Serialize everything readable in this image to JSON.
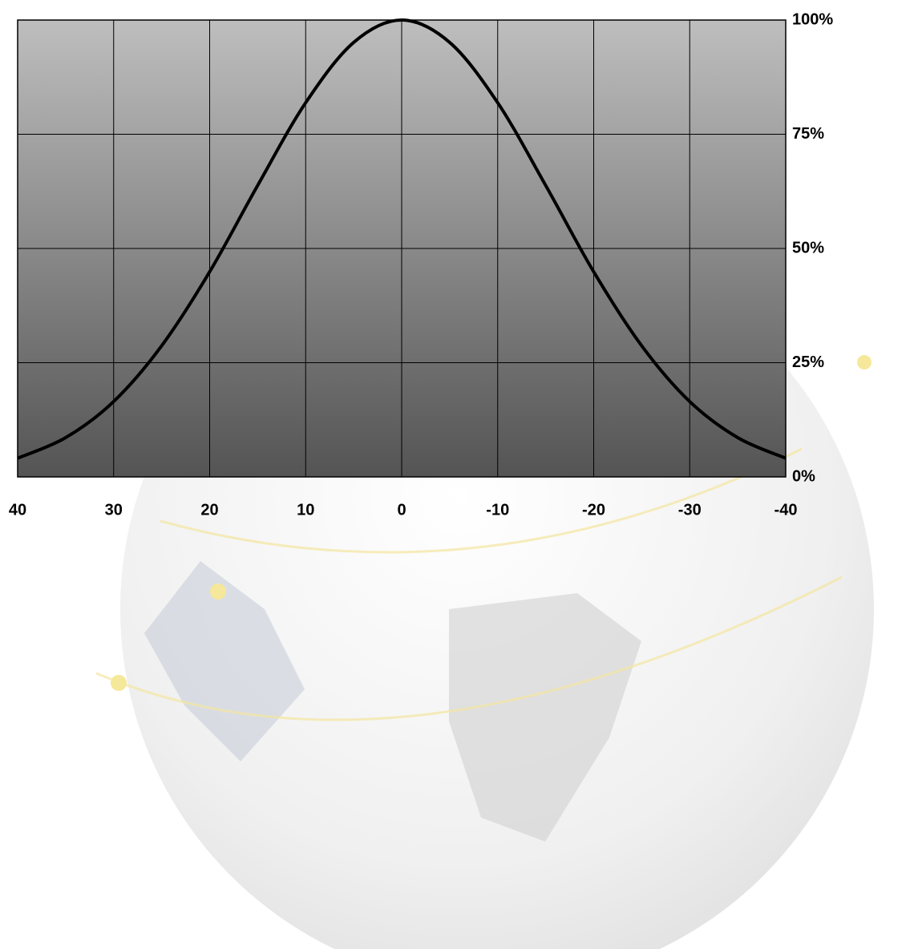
{
  "chart_data": {
    "type": "line",
    "x": [
      40,
      35,
      30,
      25,
      20,
      15,
      10,
      5,
      0,
      -5,
      -10,
      -15,
      -20,
      -25,
      -30,
      -35,
      -40
    ],
    "series": [
      {
        "color": "#000000",
        "values": [
          4.1,
          8.6,
          16.5,
          28.7,
          44.9,
          63.8,
          81.9,
          95.1,
          100,
          95.1,
          81.9,
          63.8,
          44.9,
          28.7,
          16.5,
          8.6,
          4.1
        ]
      }
    ],
    "xlim": [
      40,
      -40
    ],
    "xticks": [
      40,
      30,
      20,
      10,
      0,
      -10,
      -20,
      -30,
      -40
    ],
    "ylim": [
      0,
      100
    ],
    "yticks": [
      {
        "value": 0,
        "label": "0%"
      },
      {
        "value": 25,
        "label": "25%"
      },
      {
        "value": 50,
        "label": "50%"
      },
      {
        "value": 75,
        "label": "75%"
      },
      {
        "value": 100,
        "label": "100%"
      }
    ],
    "grid": true,
    "y_axis_side": "right"
  }
}
